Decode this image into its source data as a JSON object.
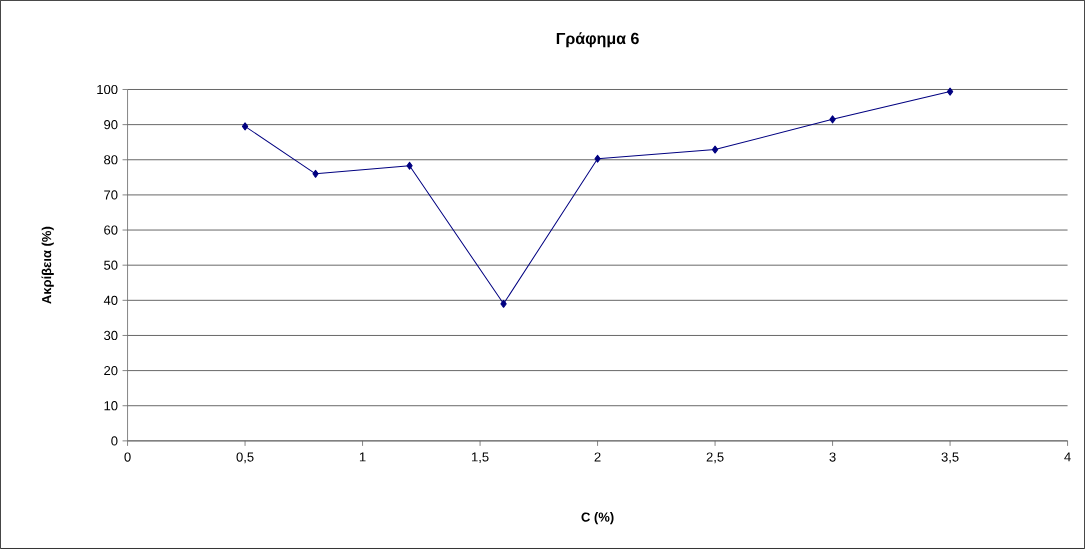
{
  "chart_data": {
    "type": "line",
    "title": "Γράφημα 6",
    "xlabel": "C (%)",
    "ylabel": "Ακρίβεια (%)",
    "x": [
      0.5,
      0.8,
      1.2,
      1.6,
      2,
      2.5,
      3,
      3.5
    ],
    "series": [
      {
        "color": "#000080",
        "values": [
          89.5,
          76,
          78.3,
          39,
          80.3,
          82.9,
          91.5,
          99.4
        ]
      }
    ],
    "xlim": [
      0,
      4
    ],
    "xticks": [
      0,
      {
        "value": 0.5,
        "label": "0,5"
      },
      1,
      {
        "value": 1.5,
        "label": "1,5"
      },
      2,
      {
        "value": 2.5,
        "label": "2,5"
      },
      3,
      {
        "value": 3.5,
        "label": "3,5"
      },
      4
    ],
    "ylim": [
      0,
      100
    ],
    "yticks": [
      0,
      10,
      20,
      30,
      40,
      50,
      60,
      70,
      80,
      90,
      100
    ],
    "grid": "y",
    "marker": "diamond",
    "line_style": "solid",
    "legend": false
  }
}
